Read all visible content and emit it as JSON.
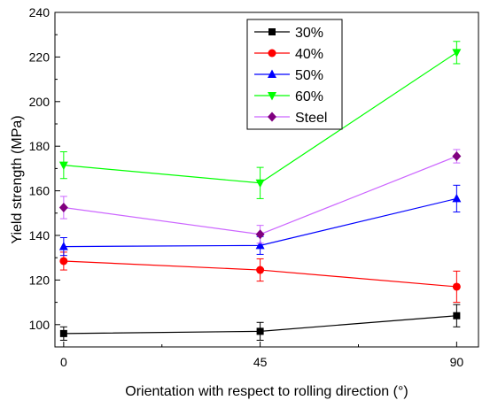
{
  "chart_data": {
    "type": "line",
    "xlabel": "Orientation with respect to rolling direction (°)",
    "ylabel": "Yield strength (MPa)",
    "x": [
      0,
      45,
      90
    ],
    "xticks": [
      0,
      45,
      90
    ],
    "xlim": [
      -2,
      95
    ],
    "ylim": [
      90,
      240
    ],
    "yticks": [
      100,
      120,
      140,
      160,
      180,
      200,
      220,
      240
    ],
    "legend_position": "top-center",
    "series": [
      {
        "name": "30%",
        "color": "#000000",
        "marker": "square",
        "values": [
          96,
          97,
          104
        ],
        "errors": [
          3,
          4,
          5
        ]
      },
      {
        "name": "40%",
        "color": "#ff0000",
        "marker": "circle",
        "values": [
          128.5,
          124.5,
          117
        ],
        "errors": [
          4,
          5,
          7
        ]
      },
      {
        "name": "50%",
        "color": "#0000ff",
        "marker": "triangle-up",
        "values": [
          135,
          135.5,
          156.5
        ],
        "errors": [
          4,
          4,
          6
        ]
      },
      {
        "name": "60%",
        "color": "#00ff00",
        "marker": "triangle-down",
        "values": [
          171.5,
          163.5,
          222
        ],
        "errors": [
          6,
          7,
          5
        ]
      },
      {
        "name": "Steel",
        "color": "#cc66ff",
        "marker": "diamond",
        "markerColor": "#800080",
        "values": [
          152.5,
          140.5,
          175.5
        ],
        "errors": [
          5,
          4,
          3
        ]
      }
    ]
  }
}
